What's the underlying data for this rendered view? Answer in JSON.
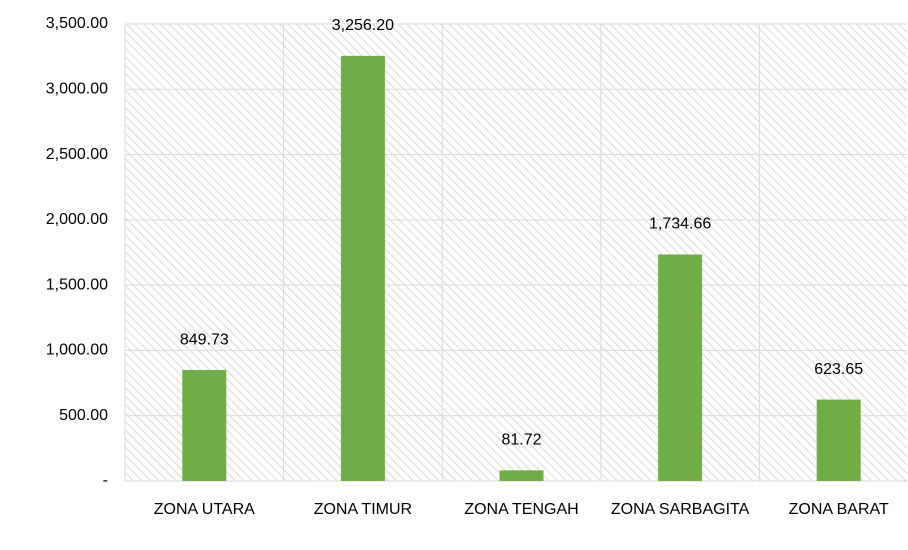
{
  "chart_data": {
    "type": "bar",
    "categories": [
      "ZONA UTARA",
      "ZONA TIMUR",
      "ZONA TENGAH",
      "ZONA SARBAGITA",
      "ZONA BARAT"
    ],
    "values": [
      849.73,
      3256.2,
      81.72,
      1734.66,
      623.65
    ],
    "value_labels": [
      "849.73",
      "3,256.20",
      "81.72",
      "1,734.66",
      "623.65"
    ],
    "color": "#70ad47",
    "ylim": [
      0,
      3500
    ],
    "yticks": [
      {
        "value": 0,
        "label": "-"
      },
      {
        "value": 500,
        "label": "500.00"
      },
      {
        "value": 1000,
        "label": "1,000.00"
      },
      {
        "value": 1500,
        "label": "1,500.00"
      },
      {
        "value": 2000,
        "label": "2,000.00"
      },
      {
        "value": 2500,
        "label": "2,500.00"
      },
      {
        "value": 3000,
        "label": "3,000.00"
      },
      {
        "value": 3500,
        "label": "3,500.00"
      }
    ],
    "grid": true
  }
}
